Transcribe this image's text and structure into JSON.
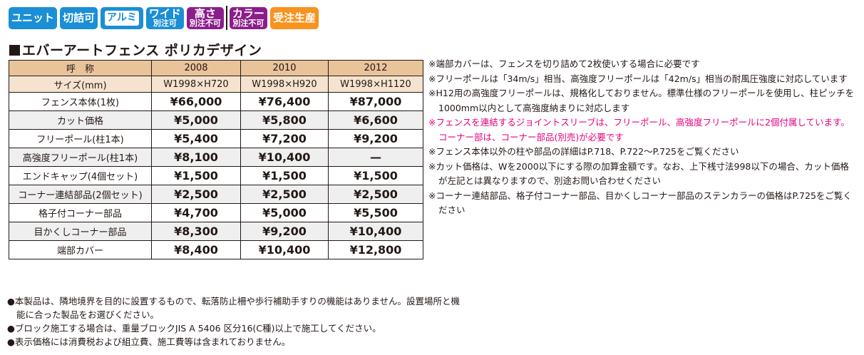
{
  "badges": [
    {
      "line1": "ユニット",
      "line2": "",
      "color": "#1a8fd6",
      "style": "solid"
    },
    {
      "line1": "切詰可",
      "line2": "",
      "color": "#1a8fd6",
      "style": "solid"
    },
    {
      "line1": "アルミ",
      "line2": "",
      "color": "#1a8fd6",
      "style": "outline"
    },
    {
      "line1": "ワイド",
      "line2": "別注可",
      "color": "#1a8fd6",
      "style": "solid"
    },
    {
      "line1": "高さ",
      "line2": "別注不可",
      "color": "#8b1e8b",
      "style": "solid"
    },
    {
      "line1": "カラー",
      "line2": "別注不可",
      "color": "#8b1e8b",
      "style": "solid"
    },
    {
      "line1": "受注生産",
      "line2": "",
      "color": "#f7931e",
      "style": "solid"
    }
  ],
  "title": "エバーアートフェンス ポリカデザイン",
  "table": {
    "header_label": "呼　称",
    "size_label": "サイズ(mm)",
    "columns": [
      "2008",
      "2010",
      "2012"
    ],
    "sizes": [
      "W1998×H720",
      "W1998×H920",
      "W1998×H1120"
    ],
    "rows": [
      {
        "label": "フェンス本体(1枚)",
        "values": [
          "¥66,000",
          "¥76,400",
          "¥87,000"
        ]
      },
      {
        "label": "カット価格",
        "values": [
          "¥5,000",
          "¥5,800",
          "¥6,600"
        ]
      },
      {
        "label": "フリーポール(柱1本)",
        "values": [
          "¥5,400",
          "¥7,200",
          "¥9,200"
        ]
      },
      {
        "label": "高強度フリーポール(柱1本)",
        "values": [
          "¥8,100",
          "¥10,400",
          "—"
        ]
      },
      {
        "label": "エンドキャップ(4個セット)",
        "values": [
          "¥1,500",
          "¥1,500",
          "¥1,500"
        ]
      },
      {
        "label": "コーナー連結部品(2個セット)",
        "values": [
          "¥2,500",
          "¥2,500",
          "¥2,500"
        ]
      },
      {
        "label": "格子付コーナー部品",
        "values": [
          "¥4,700",
          "¥5,000",
          "¥5,500"
        ]
      },
      {
        "label": "目かくしコーナー部品",
        "values": [
          "¥8,300",
          "¥9,200",
          "¥10,400"
        ]
      },
      {
        "label": "端部カバー",
        "values": [
          "¥8,400",
          "¥10,400",
          "¥12,800"
        ]
      }
    ]
  },
  "notes": [
    {
      "text": "※端部カバーは、フェンスを切り詰めて2枚使いする場合に必要です",
      "highlight": false
    },
    {
      "text": "※フリーポールは「34m/s」相当、高強度フリーポールは「42m/s」相当の耐風圧強度に対応しています",
      "highlight": false
    },
    {
      "text": "※H12用の高強度フリーポールは、規格化しておりません。標準仕様のフリーポールを使用し、柱ピッチを1000mm以内として高強度納まりに対応します",
      "highlight": false
    },
    {
      "text": "※フェンスを連結するジョイントスリーブは、フリーポール、高強度フリーポールに2個付属しています。コーナー部は、コーナー部品(別売)が必要です",
      "highlight": true
    },
    {
      "text": "※フェンス本体以外の柱や部品の詳細はP.718、P.722〜P.725をご覧ください",
      "highlight": false
    },
    {
      "text": "※カット価格は、Wを2000以下にする際の加算金額です。なお、上下桟寸法998以下の場合、カット価格が左記とは異なりますので、別途お問い合わせください",
      "highlight": false
    },
    {
      "text": "※コーナー連結部品、格子付コーナー部品、目かくしコーナー部品のステンカラーの価格はP.725をご覧ください",
      "highlight": false
    }
  ],
  "highlight_color": "#e4007f",
  "footer_notes": [
    "●本製品は、隣地境界を目的に設置するもので、転落防止柵や歩行補助手すりの機能はありません。設置場所と機能に合った製品をお選びください。",
    "●ブロック施工する場合は、重量ブロックJIS A 5406 区分16(C種)以上で施工してください。",
    "●表示価格には消費税および組立費、施工費等は含まれておりません。"
  ]
}
